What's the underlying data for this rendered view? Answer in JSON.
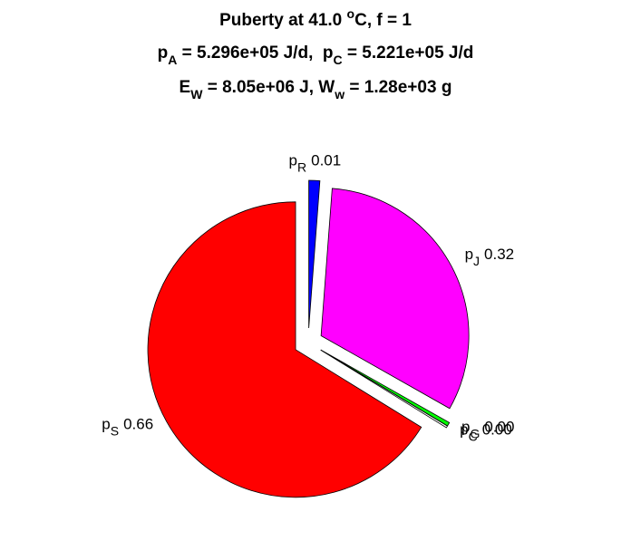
{
  "chart_data": {
    "type": "pie",
    "title_lines": [
      [
        {
          "text": "Puberty at 41.0 "
        },
        {
          "text": "o",
          "shift": "sup"
        },
        {
          "text": "C, f = 1"
        }
      ],
      [
        {
          "text": "p"
        },
        {
          "text": "A",
          "shift": "sub"
        },
        {
          "text": " = 5.296e+05 J/d,  p"
        },
        {
          "text": "C",
          "shift": "sub"
        },
        {
          "text": " = 5.221e+05 J/d"
        }
      ],
      [
        {
          "text": "E"
        },
        {
          "text": "W",
          "shift": "sub"
        },
        {
          "text": " = 8.05e+06 J, W"
        },
        {
          "text": "w",
          "shift": "sub"
        },
        {
          "text": " = 1.28e+03 g"
        }
      ]
    ],
    "categories": [
      {
        "base": "p",
        "sub": "R"
      },
      {
        "base": "p",
        "sub": "J"
      },
      {
        "base": "p",
        "sub": "G"
      },
      {
        "base": "p",
        "sub": "C"
      },
      {
        "base": "p",
        "sub": "S"
      }
    ],
    "values": [
      0.012,
      0.32,
      0.004,
      0.002,
      0.662
    ],
    "value_labels": [
      "0.01",
      "0.32",
      "0.00",
      "0.00",
      "0.66"
    ],
    "colors": [
      "#0000ff",
      "#ff00ff",
      "#00ff00",
      "#ffffff",
      "#ff0000"
    ],
    "exploded": true
  }
}
